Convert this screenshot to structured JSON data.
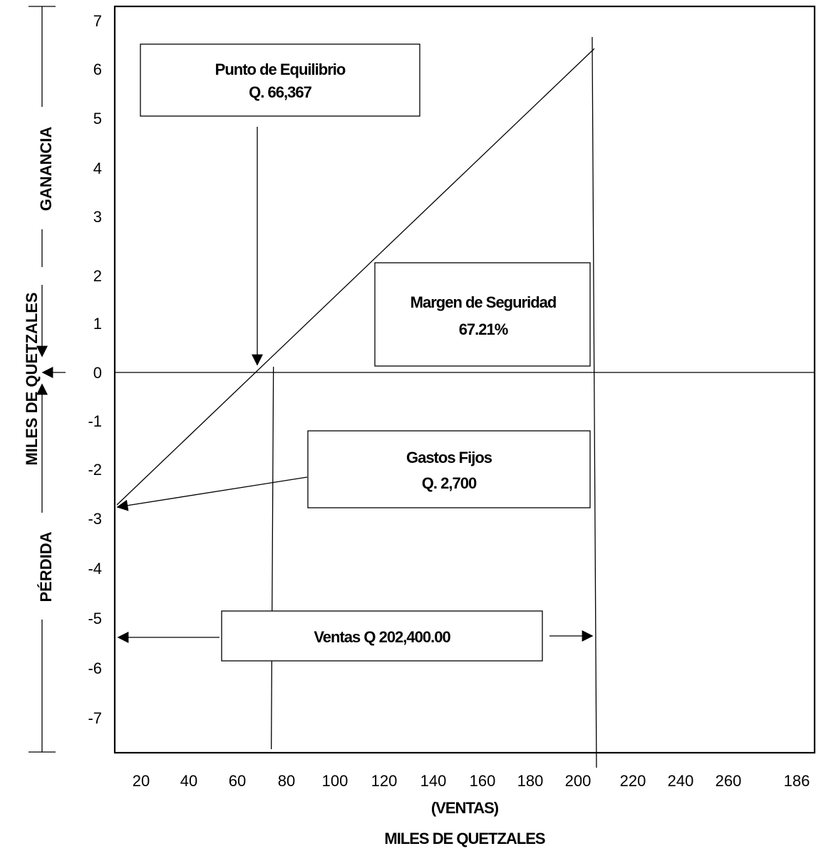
{
  "chart_data": {
    "type": "line",
    "title": "",
    "xlabel": "(VENTAS)",
    "xlabel2": "MILES DE QUETZALES",
    "ylabel": "MILES DE QUETZALES",
    "x_ticks": [
      "20",
      "40",
      "60",
      "80",
      "100",
      "120",
      "140",
      "160",
      "180",
      "200",
      "220",
      "240",
      "260",
      "186"
    ],
    "y_ticks": [
      "7",
      "6",
      "5",
      "4",
      "3",
      "2",
      "1",
      "0",
      "-1",
      "-2",
      "-3",
      "-4",
      "-5",
      "-6",
      "-7"
    ],
    "series": [
      {
        "x": [
          0,
          66.367,
          202.4
        ],
        "y": [
          -2.7,
          0,
          6.6
        ]
      }
    ],
    "breakeven_x": 66.367,
    "sales_x": 202.4,
    "side_labels": {
      "profit": "GANANCIA",
      "loss": "PÉRDIDA"
    },
    "annotations": {
      "breakeven": [
        "Punto de Equilibrio",
        "Q. 66,367"
      ],
      "safety": [
        "Margen de Seguridad",
        "67.21%"
      ],
      "fixed": [
        "Gastos Fijos",
        "Q. 2,700"
      ],
      "sales": "Ventas Q 202,400.00"
    },
    "grid": false
  }
}
